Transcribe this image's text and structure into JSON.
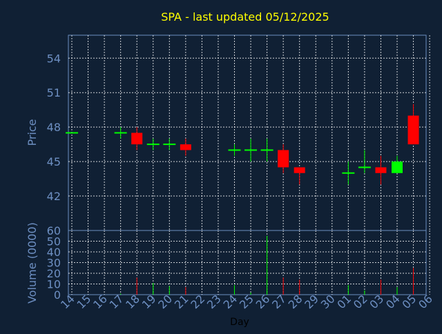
{
  "chart_data": [
    {
      "type": "candlestick",
      "title": "SPA - last updated 05/12/2025",
      "ylabel": "Price",
      "ylim": [
        39,
        56
      ],
      "yticks": [
        42,
        45,
        48,
        51,
        54
      ],
      "xlabel": "Day",
      "x_labels": [
        "14",
        "15",
        "16",
        "17",
        "18",
        "19",
        "20",
        "21",
        "22",
        "23",
        "24",
        "25",
        "26",
        "27",
        "28",
        "29",
        "30",
        "01",
        "02",
        "03",
        "04",
        "05",
        "06"
      ],
      "grid": true,
      "colors": {
        "background": "#102034",
        "up": "#00ff00",
        "down": "#ff0000",
        "title": "#ffff00",
        "axis_text": "#6d8fc2",
        "grid": "#ffffff"
      },
      "candles": [
        {
          "x": "14",
          "open": 47.5,
          "high": 47.5,
          "low": 47.5,
          "close": 47.5
        },
        {
          "x": "17",
          "open": 47.5,
          "high": 48.0,
          "low": 47.0,
          "close": 47.5
        },
        {
          "x": "18",
          "open": 47.5,
          "high": 48.0,
          "low": 46.0,
          "close": 46.5
        },
        {
          "x": "19",
          "open": 46.5,
          "high": 47.0,
          "low": 46.0,
          "close": 46.5
        },
        {
          "x": "20",
          "open": 46.5,
          "high": 47.0,
          "low": 46.0,
          "close": 46.5
        },
        {
          "x": "21",
          "open": 46.5,
          "high": 47.0,
          "low": 45.5,
          "close": 46.0
        },
        {
          "x": "24",
          "open": 46.0,
          "high": 46.5,
          "low": 45.5,
          "close": 46.0
        },
        {
          "x": "25",
          "open": 46.0,
          "high": 47.0,
          "low": 45.0,
          "close": 46.0
        },
        {
          "x": "26",
          "open": 46.0,
          "high": 47.0,
          "low": 45.0,
          "close": 46.0
        },
        {
          "x": "27",
          "open": 46.0,
          "high": 46.5,
          "low": 44.0,
          "close": 44.5
        },
        {
          "x": "28",
          "open": 44.5,
          "high": 44.5,
          "low": 43.0,
          "close": 44.0
        },
        {
          "x": "01",
          "open": 44.0,
          "high": 45.0,
          "low": 43.0,
          "close": 44.0
        },
        {
          "x": "02",
          "open": 44.5,
          "high": 46.0,
          "low": 44.0,
          "close": 44.5
        },
        {
          "x": "03",
          "open": 44.5,
          "high": 45.5,
          "low": 43.0,
          "close": 44.0
        },
        {
          "x": "04",
          "open": 44.0,
          "high": 45.5,
          "low": 44.0,
          "close": 45.0
        },
        {
          "x": "05",
          "open": 49.0,
          "high": 50.0,
          "low": 46.5,
          "close": 46.5
        }
      ]
    },
    {
      "type": "bar",
      "ylabel": "Volume (0000)",
      "ylim": [
        0,
        60
      ],
      "yticks": [
        0,
        10,
        20,
        30,
        40,
        50,
        60
      ],
      "xlabel": "Day",
      "bars": [
        {
          "x": "17",
          "value": 1,
          "dir": "up"
        },
        {
          "x": "18",
          "value": 16,
          "dir": "down"
        },
        {
          "x": "19",
          "value": 11,
          "dir": "up"
        },
        {
          "x": "20",
          "value": 8,
          "dir": "up"
        },
        {
          "x": "21",
          "value": 7,
          "dir": "down"
        },
        {
          "x": "24",
          "value": 9,
          "dir": "up"
        },
        {
          "x": "25",
          "value": 2,
          "dir": "up"
        },
        {
          "x": "26",
          "value": 55,
          "dir": "up"
        },
        {
          "x": "27",
          "value": 16,
          "dir": "down"
        },
        {
          "x": "28",
          "value": 14,
          "dir": "down"
        },
        {
          "x": "01",
          "value": 9,
          "dir": "up"
        },
        {
          "x": "02",
          "value": 4,
          "dir": "up"
        },
        {
          "x": "03",
          "value": 14,
          "dir": "down"
        },
        {
          "x": "04",
          "value": 7,
          "dir": "up"
        },
        {
          "x": "05",
          "value": 25,
          "dir": "down"
        }
      ]
    }
  ]
}
